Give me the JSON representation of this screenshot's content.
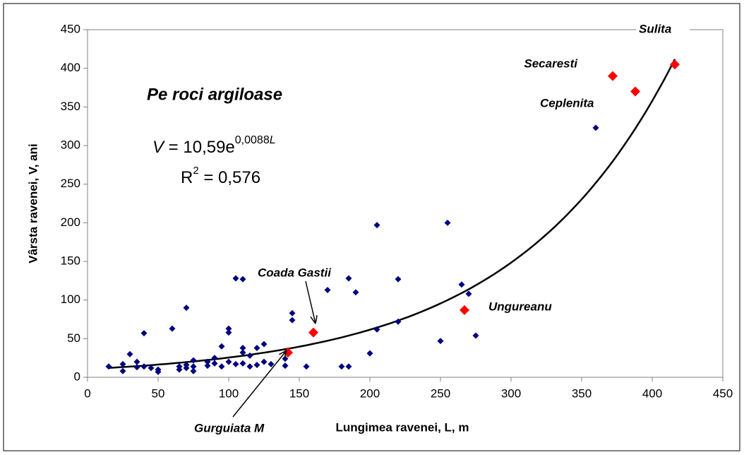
{
  "chart_data": {
    "type": "scatter",
    "annotation": "Pe roci argiloase",
    "x_label": "Lungimea ravenei, L, m",
    "y_label": "Vârsta ravenei, V, ani",
    "xlim": [
      0,
      450
    ],
    "xticks": [
      0,
      50,
      100,
      150,
      200,
      250,
      300,
      350,
      400,
      450
    ],
    "ylim": [
      0,
      450
    ],
    "yticks": [
      0,
      50,
      100,
      150,
      200,
      250,
      300,
      350,
      400,
      450
    ],
    "series": [
      {
        "color": "#000080",
        "x": [
          15,
          25,
          25,
          30,
          35,
          35,
          40,
          40,
          45,
          50,
          50,
          60,
          65,
          65,
          70,
          70,
          70,
          75,
          75,
          75,
          85,
          85,
          90,
          90,
          95,
          95,
          100,
          100,
          100,
          105,
          105,
          110,
          110,
          110,
          110,
          115,
          115,
          120,
          120,
          125,
          125,
          130,
          140,
          140,
          145,
          145,
          155,
          170,
          180,
          185,
          185,
          190,
          200,
          205,
          205,
          220,
          220,
          250,
          255,
          265,
          270,
          275,
          360
        ],
        "values": [
          14,
          8,
          17,
          30,
          20,
          13,
          57,
          14,
          12,
          10,
          7,
          63,
          14,
          10,
          90,
          12,
          16,
          22,
          14,
          8,
          20,
          15,
          25,
          18,
          40,
          14,
          63,
          58,
          20,
          128,
          17,
          127,
          38,
          32,
          18,
          28,
          14,
          38,
          16,
          43,
          20,
          17,
          24,
          15,
          83,
          74,
          14,
          113,
          14,
          128,
          14,
          110,
          31,
          197,
          62,
          127,
          72,
          47,
          200,
          120,
          108,
          54,
          323
        ]
      },
      {
        "color": "#ff0000",
        "x": [
          142,
          160,
          267,
          372,
          388,
          416
        ],
        "values": [
          32,
          58,
          87,
          390,
          370,
          405
        ],
        "labels": [
          "Gurguiata M",
          "Coada Gastii",
          "Ungureanu",
          "Secaresti",
          "Ceplenita",
          "Sulita"
        ]
      }
    ],
    "trendline": {
      "coefficient": 10.59,
      "exponent": 0.0088,
      "equation_parts": [
        "V",
        " = 10,59e",
        "0,0088",
        "L"
      ],
      "r2_parts": [
        "R",
        "2",
        " = 0,576"
      ],
      "r2": 0.576
    }
  }
}
